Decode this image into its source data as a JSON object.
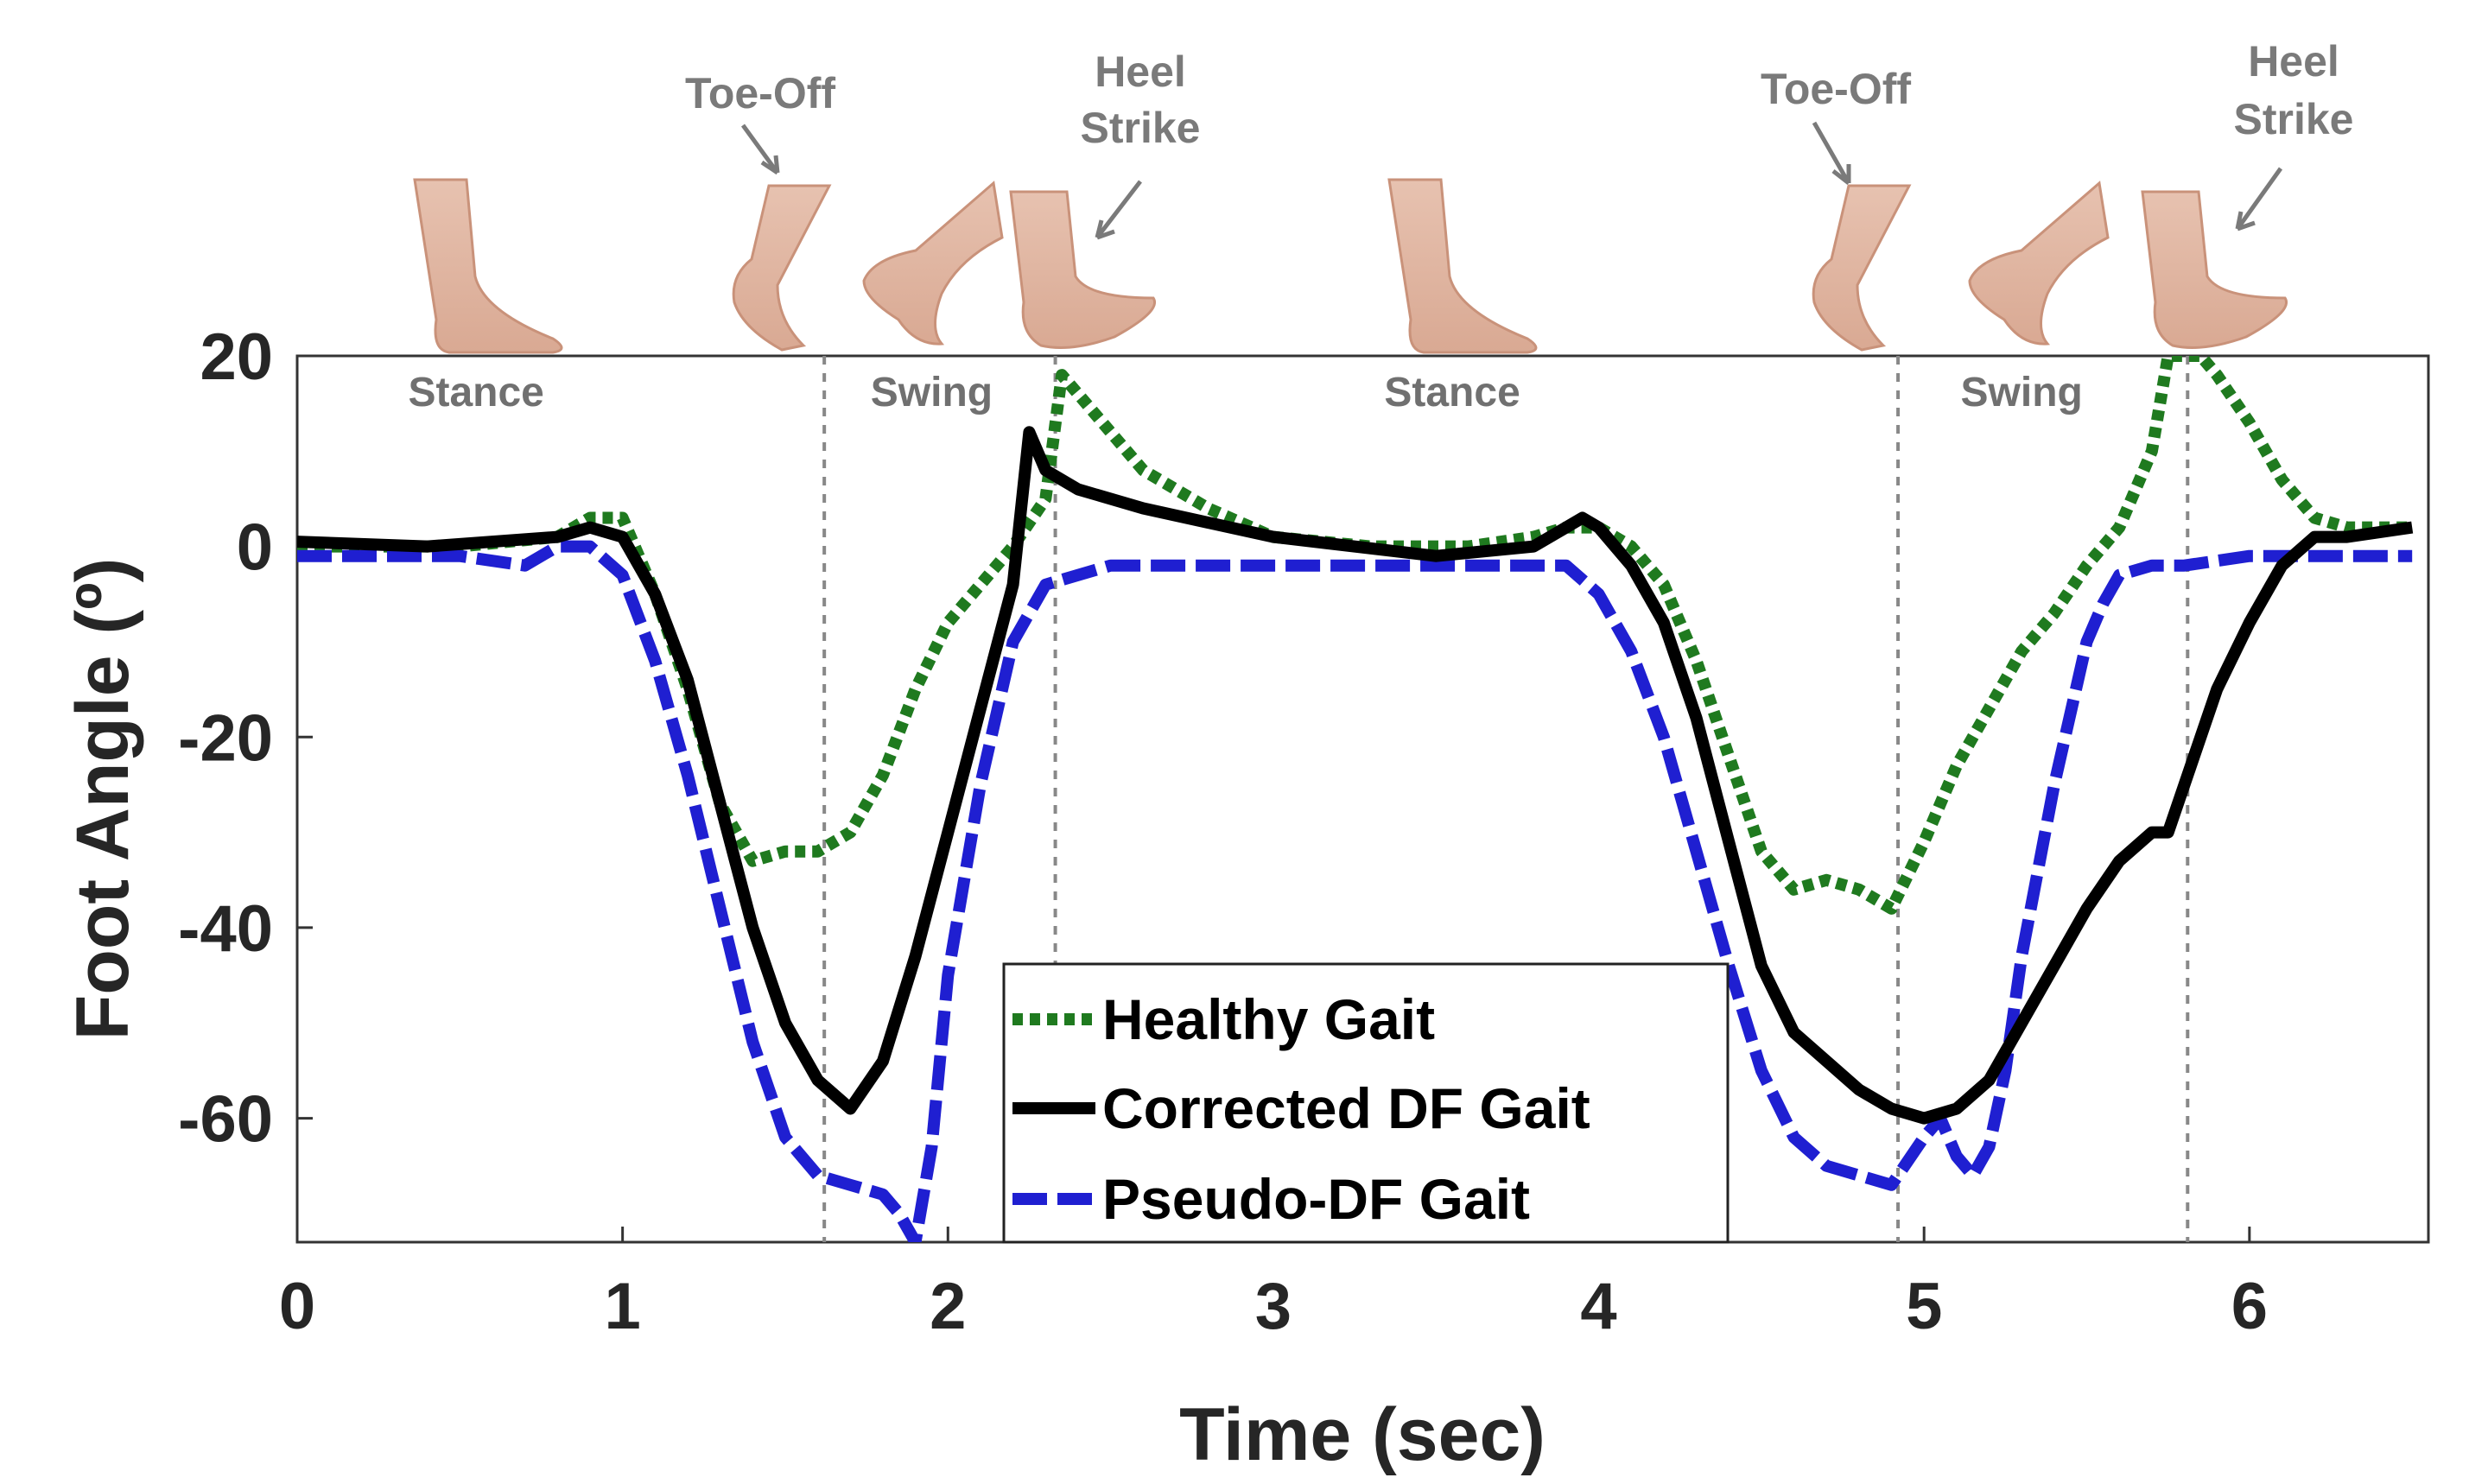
{
  "chart_data": {
    "type": "line",
    "title": "",
    "xlabel": "Time (sec)",
    "ylabel": "Foot Angle (º)",
    "xlim": [
      0,
      6.55
    ],
    "ylim": [
      -73,
      20
    ],
    "xticks": [
      0,
      1,
      2,
      3,
      4,
      5,
      6
    ],
    "yticks": [
      20,
      0,
      -20,
      -40,
      -60
    ],
    "grid": false,
    "legend_position": "bottom-center",
    "series": [
      {
        "name": "Healthy Gait",
        "color": "#1f7a1f",
        "style": "dotted",
        "x": [
          0,
          0.5,
          0.8,
          0.9,
          1.0,
          1.1,
          1.2,
          1.3,
          1.4,
          1.5,
          1.6,
          1.7,
          1.8,
          1.9,
          2.0,
          2.1,
          2.2,
          2.3,
          2.35,
          2.4,
          2.5,
          2.6,
          2.8,
          3.0,
          3.3,
          3.6,
          3.8,
          3.9,
          4.0,
          4.1,
          4.2,
          4.3,
          4.4,
          4.5,
          4.6,
          4.7,
          4.8,
          4.9,
          5.0,
          5.1,
          5.2,
          5.3,
          5.4,
          5.5,
          5.6,
          5.7,
          5.75,
          5.8,
          5.85,
          5.9,
          6.0,
          6.1,
          6.2,
          6.3,
          6.5
        ],
        "y": [
          0,
          0,
          1,
          3,
          3,
          -5,
          -15,
          -27,
          -33,
          -32,
          -32,
          -30,
          -24,
          -15,
          -8,
          -4,
          0,
          5,
          18,
          16,
          12,
          8,
          4,
          1,
          0,
          0,
          1,
          2,
          2,
          0,
          -4,
          -12,
          -22,
          -32,
          -36,
          -35,
          -36,
          -38,
          -31,
          -23,
          -17,
          -11,
          -7,
          -2,
          2,
          10,
          20,
          20,
          20,
          18,
          13,
          7,
          3,
          2,
          2
        ]
      },
      {
        "name": "Corrected DF Gait",
        "color": "#000000",
        "style": "solid",
        "x": [
          0,
          0.4,
          0.8,
          0.9,
          1.0,
          1.1,
          1.2,
          1.3,
          1.4,
          1.5,
          1.6,
          1.7,
          1.8,
          1.9,
          2.0,
          2.1,
          2.2,
          2.25,
          2.3,
          2.4,
          2.6,
          3.0,
          3.5,
          3.8,
          3.9,
          3.95,
          4.0,
          4.1,
          4.2,
          4.3,
          4.4,
          4.5,
          4.6,
          4.7,
          4.8,
          4.9,
          5.0,
          5.1,
          5.2,
          5.3,
          5.4,
          5.5,
          5.6,
          5.7,
          5.75,
          5.8,
          5.9,
          6.0,
          6.1,
          6.2,
          6.3,
          6.5
        ],
        "y": [
          0.5,
          0,
          1,
          2,
          1,
          -5,
          -14,
          -27,
          -40,
          -50,
          -56,
          -59,
          -54,
          -43,
          -30,
          -17,
          -4,
          12,
          8,
          6,
          4,
          1,
          -1,
          0,
          2,
          3,
          2,
          -2,
          -8,
          -18,
          -31,
          -44,
          -51,
          -54,
          -57,
          -59,
          -60,
          -59,
          -56,
          -50,
          -44,
          -38,
          -33,
          -30,
          -30,
          -25,
          -15,
          -8,
          -2,
          1,
          1,
          2
        ]
      },
      {
        "name": "Pseudo-DF Gait",
        "color": "#1f1fd1",
        "style": "dashed",
        "x": [
          0,
          0.3,
          0.5,
          0.7,
          0.8,
          0.9,
          1.0,
          1.1,
          1.2,
          1.3,
          1.4,
          1.5,
          1.6,
          1.7,
          1.8,
          1.85,
          1.9,
          1.95,
          2.0,
          2.1,
          2.2,
          2.3,
          2.5,
          2.8,
          3.1,
          3.5,
          3.8,
          3.9,
          4.0,
          4.1,
          4.2,
          4.3,
          4.4,
          4.5,
          4.6,
          4.7,
          4.8,
          4.9,
          5.0,
          5.05,
          5.1,
          5.15,
          5.2,
          5.25,
          5.3,
          5.4,
          5.5,
          5.55,
          5.6,
          5.7,
          5.8,
          6.0,
          6.2,
          6.5
        ],
        "y": [
          -1,
          -1,
          -1,
          -2,
          0,
          0,
          -3,
          -12,
          -24,
          -38,
          -52,
          -62,
          -66,
          -67,
          -68,
          -70,
          -73,
          -63,
          -45,
          -25,
          -10,
          -4,
          -2,
          -2,
          -2,
          -2,
          -2,
          -2,
          -5,
          -11,
          -20,
          -32,
          -44,
          -55,
          -62,
          -65,
          -66,
          -67,
          -62,
          -60,
          -64,
          -66,
          -63,
          -55,
          -43,
          -25,
          -10,
          -6,
          -3,
          -2,
          -2,
          -1,
          -1,
          -1
        ]
      }
    ],
    "phase_labels": [
      {
        "text": "Stance",
        "x": 0.55
      },
      {
        "text": "Swing",
        "x": 1.95
      },
      {
        "text": "Stance",
        "x": 3.55
      },
      {
        "text": "Swing",
        "x": 5.3
      }
    ],
    "event_lines": [
      {
        "name": "Toe-Off",
        "x": 1.62
      },
      {
        "name": "Heel Strike",
        "x": 2.33
      },
      {
        "name": "Toe-Off",
        "x": 4.92
      },
      {
        "name": "Heel Strike",
        "x": 5.81
      }
    ],
    "event_labels": {
      "toe_off_1": "Toe-Off",
      "heel_strike_1_line1": "Heel",
      "heel_strike_1_line2": "Strike",
      "toe_off_2": "Toe-Off",
      "heel_strike_2_line1": "Heel",
      "heel_strike_2_line2": "Strike"
    },
    "legend_entries": [
      "Healthy Gait",
      "Corrected DF Gait",
      "Pseudo-DF Gait"
    ]
  }
}
